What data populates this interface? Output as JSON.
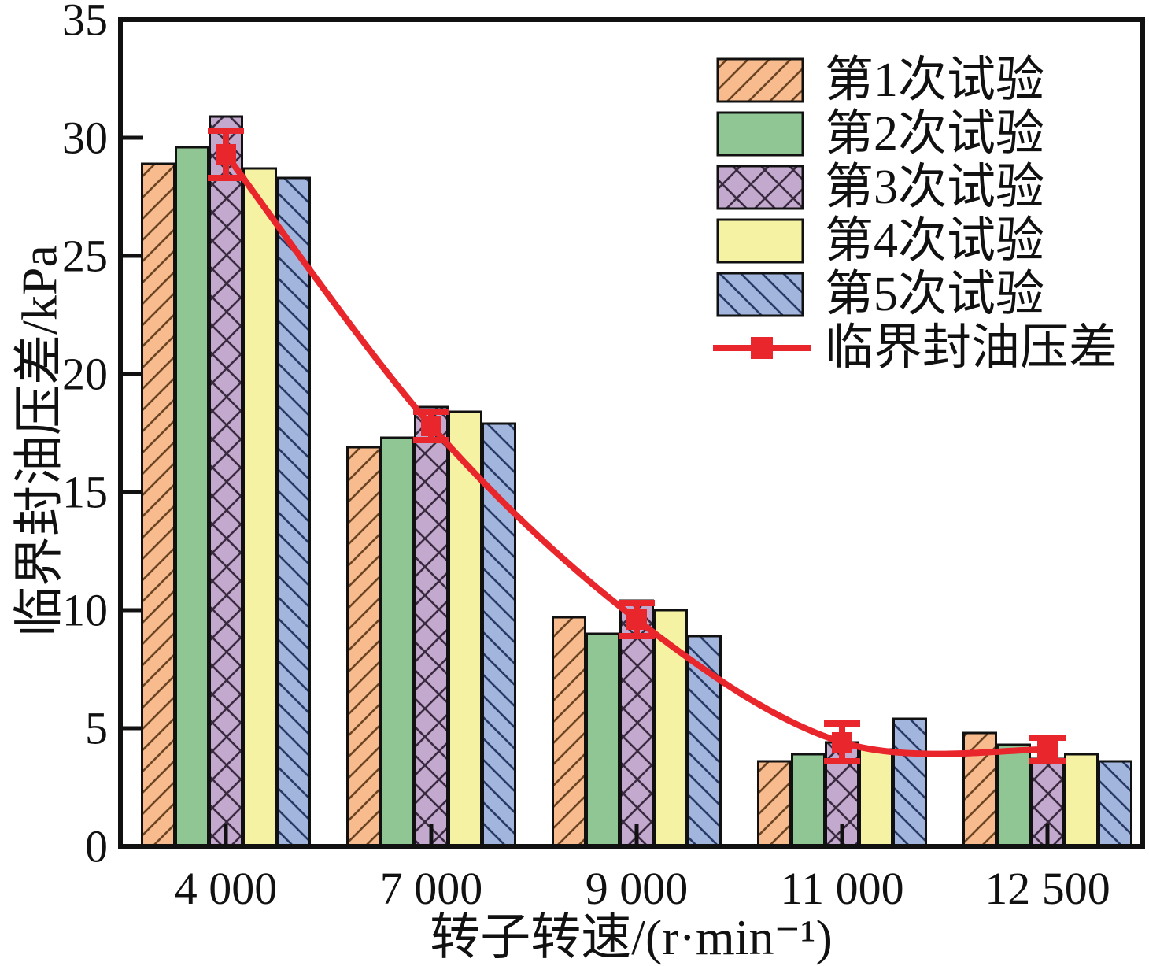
{
  "chart_data": {
    "type": "bar",
    "title": "",
    "xlabel": "转子转速/(r·min⁻¹)",
    "ylabel": "临界封油压差/kPa",
    "categories": [
      "4 000",
      "7 000",
      "9 000",
      "11 000",
      "12 500"
    ],
    "category_values": [
      4000,
      7000,
      9000,
      11000,
      12500
    ],
    "ylim": [
      0,
      35
    ],
    "yticks": [
      0,
      5,
      10,
      15,
      20,
      25,
      30,
      35
    ],
    "grid": "off",
    "legend_position": "upper right, inside plot",
    "bar_series": [
      {
        "name": "第1次试验",
        "fill": "#F8BB8D",
        "hatch": "/",
        "hatch_color": "#6b4423",
        "values": [
          28.9,
          16.9,
          9.7,
          3.6,
          4.8
        ]
      },
      {
        "name": "第2次试验",
        "fill": "#8FC694",
        "hatch": "",
        "hatch_color": "",
        "values": [
          29.6,
          17.3,
          9.0,
          3.9,
          4.3
        ]
      },
      {
        "name": "第3次试验",
        "fill": "#C4A9CF",
        "hatch": "x",
        "hatch_color": "#3a2b40",
        "values": [
          30.9,
          18.6,
          10.4,
          4.4,
          3.7
        ]
      },
      {
        "name": "第4次试验",
        "fill": "#F5F3A3",
        "hatch": "",
        "hatch_color": "",
        "values": [
          28.7,
          18.4,
          10.0,
          4.1,
          3.9
        ]
      },
      {
        "name": "第5次试验",
        "fill": "#A1B5DD",
        "hatch": "\\",
        "hatch_color": "#2a3a66",
        "values": [
          28.3,
          17.9,
          8.9,
          5.4,
          3.6
        ]
      }
    ],
    "line_series": {
      "name": "临界封油压差",
      "color": "#E8262B",
      "marker": "filled-square",
      "values": [
        29.3,
        17.8,
        9.6,
        4.4,
        4.1
      ],
      "error_bars": [
        1.0,
        0.6,
        0.7,
        0.8,
        0.5
      ]
    },
    "axis_color": "#111111"
  }
}
